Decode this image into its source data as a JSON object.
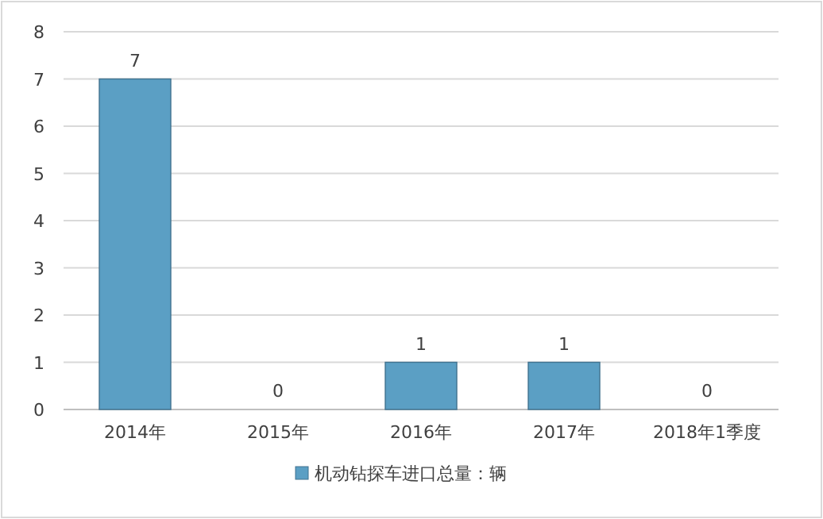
{
  "chart_data": {
    "type": "bar",
    "categories": [
      "2014年",
      "2015年",
      "2016年",
      "2017年",
      "2018年1季度"
    ],
    "series": [
      {
        "name": "机动钻探车进口总量：辆",
        "color": "#5b9fc4",
        "values": [
          7,
          0,
          1,
          1,
          0
        ]
      }
    ],
    "ylim": [
      0,
      8
    ],
    "yticks": [
      0,
      1,
      2,
      3,
      4,
      5,
      6,
      7,
      8
    ],
    "grid": "y",
    "data_labels": true,
    "legend": "bottom"
  }
}
